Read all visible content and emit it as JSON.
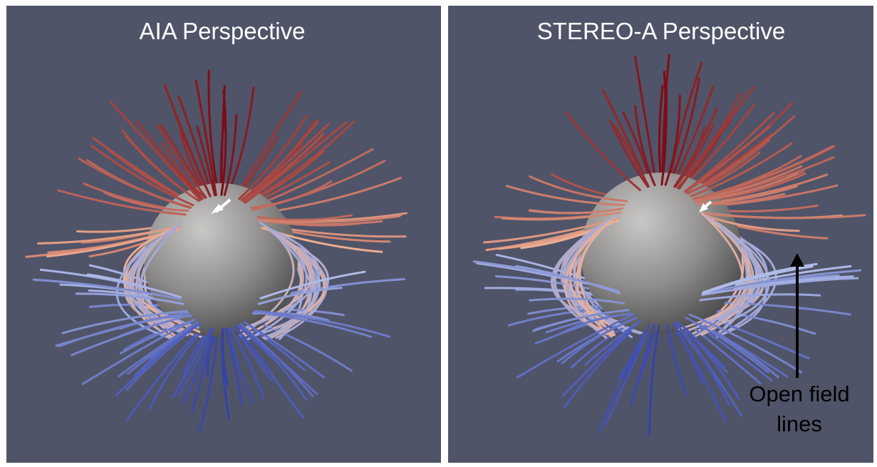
{
  "panels": [
    {
      "title": "AIA Perspective"
    },
    {
      "title": "STEREO-A Perspective",
      "annotation": [
        "Open field",
        "lines"
      ]
    }
  ]
}
